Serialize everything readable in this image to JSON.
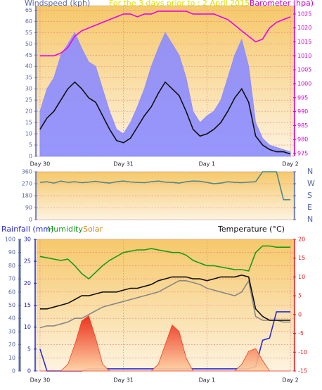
{
  "chart_data": [
    {
      "type": "line",
      "title": "For the 3 days prior to : 2 April 2015",
      "ylabel": "Windspeed (kph)",
      "y2label": "Barometer (hpa)",
      "x": [
        0,
        2,
        4,
        6,
        8,
        10,
        12,
        14,
        16,
        18,
        20,
        22,
        24,
        26,
        28,
        30,
        32,
        34,
        36,
        38,
        40,
        42,
        44,
        46,
        48,
        50,
        52,
        54,
        56,
        58,
        60,
        62,
        64,
        66,
        68,
        70,
        72
      ],
      "xlim": [
        -1,
        73
      ],
      "xticks": [
        {
          "value": 0,
          "label": "Day 30"
        },
        {
          "value": 24,
          "label": "Day 31"
        },
        {
          "value": 48,
          "label": "Day 1"
        },
        {
          "value": 72,
          "label": "Day 2"
        }
      ],
      "ylim": [
        0,
        67
      ],
      "yticks": [
        0,
        5,
        10,
        15,
        20,
        25,
        30,
        35,
        40,
        45,
        50,
        55,
        60,
        65
      ],
      "ycolor": "#5a6aa8",
      "y2lim": [
        974,
        1028
      ],
      "y2ticks": [
        975,
        980,
        985,
        990,
        995,
        1000,
        1005,
        1010,
        1015,
        1020,
        1025
      ],
      "y2color": "#cc00cc",
      "grid": true,
      "series": [
        {
          "color": "#8c8cff",
          "style": "area",
          "axis": "y",
          "values": [
            20,
            30,
            35,
            45,
            50,
            55,
            48,
            42,
            40,
            30,
            20,
            12,
            10,
            15,
            22,
            30,
            40,
            48,
            55,
            50,
            45,
            35,
            20,
            15,
            18,
            20,
            25,
            35,
            45,
            52,
            40,
            15,
            8,
            5,
            4,
            3,
            2
          ]
        },
        {
          "color": "#111111",
          "axis": "y",
          "values": [
            12,
            17,
            20,
            25,
            30,
            33,
            30,
            26,
            24,
            18,
            12,
            7,
            6,
            8,
            13,
            18,
            22,
            28,
            33,
            30,
            27,
            20,
            12,
            9,
            10,
            12,
            15,
            20,
            26,
            30,
            24,
            9,
            5,
            3,
            2,
            2,
            1
          ]
        },
        {
          "color": "#ee00ee",
          "axis": "y2",
          "values": [
            1010,
            1010,
            1010,
            1011,
            1013,
            1017,
            1019,
            1020,
            1021,
            1022,
            1023,
            1024,
            1025,
            1025,
            1024,
            1025,
            1025,
            1026,
            1026,
            1026,
            1026,
            1026,
            1025,
            1025,
            1025,
            1025,
            1024,
            1023,
            1021,
            1019,
            1017,
            1015,
            1016,
            1020,
            1022,
            1023,
            1024
          ]
        }
      ]
    },
    {
      "type": "line",
      "x": [
        0,
        2,
        4,
        6,
        8,
        10,
        12,
        14,
        16,
        18,
        20,
        22,
        24,
        26,
        28,
        30,
        32,
        34,
        36,
        38,
        40,
        42,
        44,
        46,
        48,
        50,
        52,
        54,
        56,
        58,
        60,
        62,
        64,
        66,
        68,
        70,
        72
      ],
      "xlim": [
        -1,
        73
      ],
      "ylim": [
        0,
        360
      ],
      "yticks": [
        0,
        90,
        180,
        270,
        360
      ],
      "ycolor": "#5a6aa8",
      "y2lim": [
        0,
        360
      ],
      "y2ticks": [
        {
          "value": 0,
          "label": "N"
        },
        {
          "value": 90,
          "label": "E"
        },
        {
          "value": 180,
          "label": "S"
        },
        {
          "value": 270,
          "label": "W"
        },
        {
          "value": 360,
          "label": "N"
        }
      ],
      "y2color": "#5a6aa8",
      "grid": true,
      "series": [
        {
          "color": "#4f8a86",
          "axis": "y",
          "values": [
            280,
            285,
            275,
            290,
            280,
            285,
            278,
            282,
            288,
            280,
            275,
            285,
            290,
            283,
            280,
            278,
            285,
            290,
            282,
            280,
            275,
            285,
            290,
            288,
            280,
            270,
            275,
            285,
            280,
            278,
            282,
            285,
            360,
            360,
            360,
            150,
            150
          ]
        }
      ]
    },
    {
      "type": "line",
      "x": [
        0,
        2,
        4,
        6,
        8,
        10,
        12,
        14,
        16,
        18,
        20,
        22,
        24,
        26,
        28,
        30,
        32,
        34,
        36,
        38,
        40,
        42,
        44,
        46,
        48,
        50,
        52,
        54,
        56,
        58,
        60,
        62,
        64,
        66,
        68,
        70,
        72
      ],
      "xlim": [
        -1,
        73
      ],
      "xticks": [
        {
          "value": 0,
          "label": "Day 30"
        },
        {
          "value": 24,
          "label": "Day 31"
        },
        {
          "value": 48,
          "label": "Day 1"
        },
        {
          "value": 72,
          "label": "Day 2"
        }
      ],
      "ylim": [
        0,
        100
      ],
      "yticks": [
        0,
        10,
        20,
        30,
        40,
        50,
        60,
        70,
        80,
        90,
        100
      ],
      "ycolor": "#5a6aa8",
      "y3lim": [
        0,
        30
      ],
      "y3ticks": [
        0,
        5,
        10,
        15,
        20,
        25,
        30
      ],
      "y3color": "#2020c0",
      "y2lim": [
        -15,
        20
      ],
      "y2ticks": [
        -15,
        -10,
        -5,
        0,
        5,
        10,
        15,
        20
      ],
      "y2color": "#dd2020",
      "grid": true,
      "series": [
        {
          "name": "Rainfall (mm)",
          "color": "#2a2adc",
          "axis": "y3",
          "values": [
            5,
            0,
            0,
            0,
            0,
            0,
            0,
            0.5,
            0.5,
            0.5,
            0.5,
            0.5,
            0.5,
            0.5,
            0.5,
            0.5,
            0.5,
            0.5,
            0.5,
            0.5,
            0.5,
            0.5,
            0.5,
            0.5,
            0.5,
            0.5,
            0.5,
            0.5,
            0.5,
            0.5,
            0.5,
            1,
            7,
            7.5,
            13.5,
            13.5,
            13.5
          ]
        },
        {
          "name": "Humidity",
          "color": "#1a9a1a",
          "axis": "y",
          "values": [
            87,
            86,
            85,
            84,
            85,
            80,
            74,
            70,
            75,
            80,
            84,
            87,
            90,
            91,
            92,
            92,
            93,
            92,
            91,
            90,
            90,
            88,
            84,
            82,
            80,
            80,
            79,
            78,
            77,
            77,
            76,
            90,
            95,
            95,
            94,
            94,
            94
          ]
        },
        {
          "name": "Solar",
          "color": "#f04020",
          "style": "area",
          "axis": "y",
          "values": [
            0,
            0,
            0,
            0,
            5,
            20,
            38,
            42,
            25,
            5,
            0,
            0,
            0,
            0,
            0,
            0,
            0,
            5,
            20,
            35,
            30,
            10,
            0,
            0,
            0,
            0,
            0,
            0,
            0,
            5,
            15,
            17,
            8,
            0,
            0,
            0,
            0
          ]
        },
        {
          "color": "#888888",
          "axis": "y2",
          "values": [
            -3.5,
            -3,
            -3,
            -2.5,
            -2,
            -1,
            -1,
            0,
            1,
            2,
            2.5,
            3,
            3.5,
            4,
            4.5,
            5,
            5.5,
            6,
            7,
            8,
            9,
            9,
            8.5,
            8,
            7,
            6.5,
            6,
            5.5,
            5,
            6,
            9,
            -0.5,
            -1.5,
            -1.5,
            -1.5,
            -2,
            -2
          ]
        },
        {
          "name": "Temperature (°C)",
          "color": "#111111",
          "axis": "y2",
          "values": [
            1.5,
            1.5,
            2,
            2.5,
            3,
            4,
            5,
            5,
            5.5,
            6,
            6,
            6,
            6.5,
            7,
            7,
            7.5,
            8,
            9,
            9.5,
            10,
            10,
            10,
            9.5,
            9.5,
            9,
            9.5,
            10,
            10,
            10,
            10.5,
            10,
            1.5,
            -0.5,
            -1.5,
            -1.5,
            -1.5,
            -1.5
          ]
        }
      ]
    }
  ]
}
